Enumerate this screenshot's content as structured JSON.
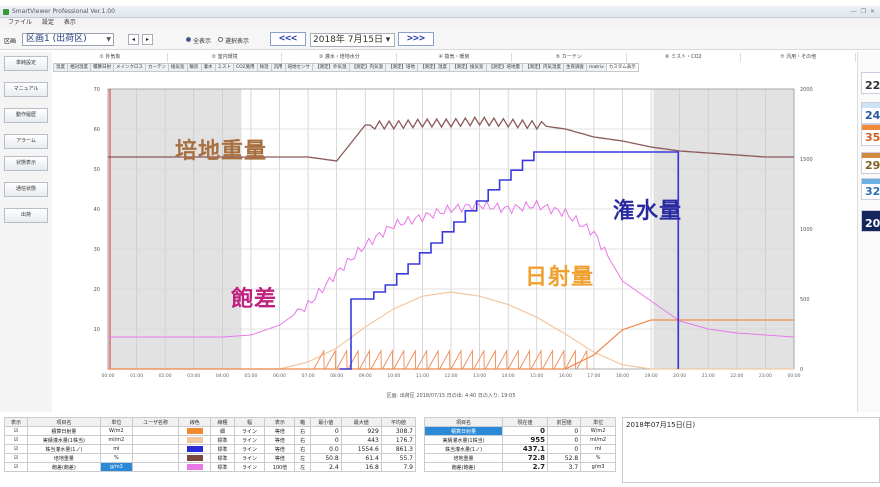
{
  "window": {
    "title": "SmartViewer Professional Ver.1.00",
    "controls": "— ❐ ✕"
  },
  "menu": [
    "ファイル",
    "設定",
    "表示"
  ],
  "toolbar": {
    "area_label": "区画",
    "area_value": "区画1 (出荷区)",
    "radio_all": "全表示",
    "radio_select": "選択表示",
    "prev_label": "<<<",
    "next_label": ">>>",
    "date_label": "2018年 7月15日 ▾"
  },
  "sidebar": [
    "単純設定",
    "マニュアル",
    "動作履歴",
    "アラーム",
    "状態表示",
    "通信状態",
    "出荷"
  ],
  "tab_groups": [
    "① 外気象",
    "② 室内環境",
    "③ 灌水・培地水分",
    "④ 換気・暖房",
    "⑤ カーテン",
    "⑥ ミスト・CO2",
    "⑦ 汎用・その他"
  ],
  "subtabs": [
    "温度",
    "相対湿度",
    "積算日射",
    "メインクロス",
    "カーテン",
    "換気窓",
    "暖房",
    "灌水",
    "ミスト",
    "CO2施用",
    "除湿",
    "汎用",
    "培地センサ",
    "【測定】外気温",
    "【測定】内気温",
    "【測定】培地",
    "【測定】湿度",
    "【測定】換気窓",
    "【測定】培地量",
    "【測定】内気湿度",
    "生育調査",
    "matrix",
    "カスタム表示"
  ],
  "chart": {
    "left_ticks": [
      "70",
      "60",
      "50",
      "40",
      "30",
      "20",
      "10"
    ],
    "right_ticks": [
      "2000",
      "1500",
      "1000",
      "500",
      "0"
    ],
    "x_ticks": [
      "00:00",
      "01:00",
      "02:00",
      "03:00",
      "04:00",
      "05:00",
      "06:00",
      "07:00",
      "08:00",
      "09:00",
      "10:00",
      "11:00",
      "12:00",
      "13:00",
      "14:00",
      "15:00",
      "16:00",
      "17:00",
      "18:00",
      "19:00",
      "20:00",
      "21:00",
      "22:00",
      "23:00",
      "00:00"
    ],
    "footer_caption": "区画: 出荷区 2018/07/15     日の出: 4:40     日の入り: 19:05",
    "labels": {
      "weight": "培地重量",
      "irrigation": "潅水量",
      "saturation": "飽差",
      "solar": "日射量"
    }
  },
  "chart_data": {
    "type": "line",
    "x": [
      0,
      1,
      2,
      3,
      4,
      5,
      6,
      7,
      8,
      9,
      10,
      11,
      12,
      13,
      14,
      15,
      16,
      17,
      18,
      19,
      20,
      21,
      22,
      23,
      24
    ],
    "x_unit": "hour",
    "series": [
      {
        "name": "培地重量",
        "axis": "left",
        "color": "#8a5a58",
        "values": [
          53,
          53,
          53,
          53,
          53,
          53,
          53,
          53,
          52,
          61,
          61,
          61.5,
          61.5,
          62,
          61.5,
          61,
          60,
          58,
          57,
          55.5,
          54.5,
          54,
          53.5,
          53,
          53
        ]
      },
      {
        "name": "飽差",
        "axis": "left",
        "color": "#e878e8",
        "values": [
          8,
          8,
          8,
          8,
          8,
          8.5,
          11,
          16,
          24,
          31,
          36,
          38,
          40,
          41,
          40,
          41,
          39,
          34,
          22,
          17,
          12,
          10,
          9,
          8.5,
          8
        ]
      },
      {
        "name": "潅水量",
        "axis": "right",
        "color": "#3a3adc",
        "values": [
          0,
          0,
          0,
          0,
          0,
          0,
          0,
          0,
          0,
          0,
          0,
          0,
          0,
          0,
          0,
          0,
          0,
          0,
          0,
          0,
          0,
          0,
          0,
          0,
          0
        ],
        "steps": [
          [
            8.1,
            0
          ],
          [
            8.5,
            500
          ],
          [
            9.3,
            550
          ],
          [
            9.7,
            600
          ],
          [
            10.1,
            680
          ],
          [
            10.5,
            750
          ],
          [
            10.9,
            830
          ],
          [
            11.3,
            900
          ],
          [
            11.7,
            980
          ],
          [
            12.1,
            1050
          ],
          [
            12.5,
            1130
          ],
          [
            12.9,
            1200
          ],
          [
            13.3,
            1280
          ],
          [
            13.7,
            1350
          ],
          [
            14.1,
            1420
          ],
          [
            14.5,
            1490
          ],
          [
            14.9,
            1550
          ],
          [
            19.9,
            1550
          ],
          [
            19.95,
            0
          ]
        ]
      },
      {
        "name": "日射量",
        "axis": "right",
        "color": "#f0c8a0",
        "values": [
          0,
          0,
          0,
          0,
          0,
          0,
          0,
          50,
          150,
          300,
          430,
          520,
          550,
          520,
          460,
          370,
          250,
          120,
          30,
          0,
          0,
          0,
          0,
          0,
          0
        ]
      },
      {
        "name": "積算日射",
        "axis": "right",
        "color": "#f08a50",
        "values": [
          0,
          0,
          0,
          0,
          0,
          0,
          0,
          0,
          0,
          0,
          0,
          0,
          0,
          0,
          0,
          0,
          0,
          100,
          280,
          350,
          350,
          350,
          350,
          350,
          350
        ]
      }
    ],
    "ylim_left": [
      0,
      70
    ],
    "ylim_right": [
      0,
      2000
    ],
    "night_bands": [
      [
        0,
        4.67
      ],
      [
        19.08,
        24
      ]
    ],
    "legend": "none",
    "grid": true
  },
  "right_panel": {
    "cards": [
      {
        "value": "22",
        "band": "#ffffff",
        "text": "#333333"
      },
      {
        "value": "24",
        "band": "#cce4f6",
        "text": "#2a5aa0"
      },
      {
        "value": "35",
        "band": "#f28a3a",
        "text": "#d06020"
      },
      {
        "value": "29",
        "band": "#d08a40",
        "text": "#806020"
      },
      {
        "value": "32",
        "band": "#6ab0e0",
        "text": "#2a70b0"
      },
      {
        "value": "20",
        "band": "#14265c",
        "text": "#ffffff"
      }
    ]
  },
  "table_left": {
    "headers": [
      "表示",
      "項目名",
      "単位",
      "ユーザ名称",
      "線色",
      "線種",
      "幅",
      "表示",
      "軸",
      "最小値",
      "最大値",
      "平均値"
    ],
    "rows": [
      {
        "show": "☑",
        "name": "積算日射量",
        "unit": "W/m2",
        "user": "",
        "color": "#f08a30",
        "type": "細",
        "width": "ライン",
        "disp": "等倍",
        "axis": "右",
        "min": "0",
        "max": "929",
        "avg": "308.7"
      },
      {
        "show": "☑",
        "name": "実績灌水量(1株当)",
        "unit": "ml/m2",
        "user": "",
        "color": "#f0c8a0",
        "type": "標準",
        "width": "ライン",
        "disp": "等倍",
        "axis": "右",
        "min": "0",
        "max": "443",
        "avg": "176.7"
      },
      {
        "show": "☑",
        "name": "株当灌水量(1ノ)",
        "unit": "ml",
        "user": "",
        "color": "#2a2ad8",
        "type": "標準",
        "width": "ライン",
        "disp": "等倍",
        "axis": "右",
        "min": "0.0",
        "max": "1554.6",
        "avg": "861.3"
      },
      {
        "show": "☑",
        "name": "培地重量",
        "unit": "%",
        "user": "",
        "color": "#7a4a40",
        "type": "標準",
        "width": "ライン",
        "disp": "等倍",
        "axis": "左",
        "min": "50.8",
        "max": "61.4",
        "avg": "55.7"
      },
      {
        "show": "☑",
        "name": "飽差(飽差)",
        "unit": "g/m3",
        "user": "",
        "color": "#e878e8",
        "type": "標準",
        "width": "ライン",
        "disp": "100倍",
        "axis": "左",
        "min": "2.4",
        "max": "16.8",
        "avg": "7.9"
      }
    ]
  },
  "table_right": {
    "headers": [
      "項目名",
      "現在値",
      "前回値",
      "単位"
    ],
    "rows": [
      {
        "name": "積算日射量",
        "current": "0",
        "prev": "0",
        "unit": "W/m2",
        "highlight": true
      },
      {
        "name": "実績灌水量(1株当)",
        "current": "955",
        "prev": "0",
        "unit": "ml/m2",
        "highlight": false
      },
      {
        "name": "株当灌水量(1ノ)",
        "current": "437.1",
        "prev": "0",
        "unit": "ml",
        "highlight": false
      },
      {
        "name": "培地重量",
        "current": "72.8",
        "prev": "52.8",
        "unit": "%",
        "highlight": false
      },
      {
        "name": "飽差(飽差)",
        "current": "2.7",
        "prev": "3.7",
        "unit": "g/m3",
        "highlight": false
      }
    ]
  },
  "date_panel": "2018年07月15日(日)"
}
